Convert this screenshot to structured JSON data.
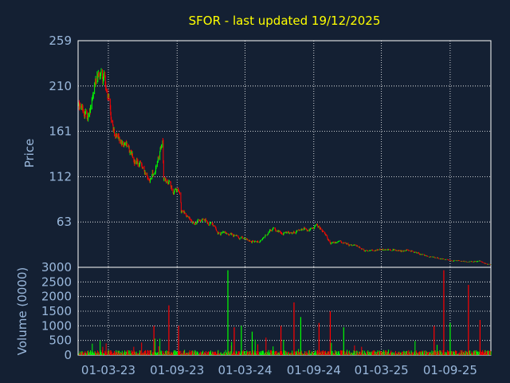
{
  "chart_data": [
    {
      "type": "candlestick",
      "title": "SFOR - last updated 19/12/2025",
      "ylabel": "Price",
      "ylim": [
        14,
        259
      ],
      "y_ticks": [
        "259",
        "210",
        "161",
        "112",
        "63"
      ],
      "y_tick_values": [
        259,
        210,
        161,
        112,
        63
      ],
      "grid": true,
      "colors": {
        "up": "#00ff00",
        "down": "#ff0000",
        "title": "#ffff00",
        "text": "#9ab8dc",
        "grid": "#ffffff"
      },
      "x_range": [
        "2022-12-10",
        "2025-12-19"
      ],
      "trend_anchors": [
        {
          "date": "2022-12-10",
          "value": 192
        },
        {
          "date": "2022-12-28",
          "value": 180
        },
        {
          "date": "2023-01-15",
          "value": 182
        },
        {
          "date": "2023-01-22",
          "value": 215
        },
        {
          "date": "2023-02-02",
          "value": 230
        },
        {
          "date": "2023-02-15",
          "value": 220
        },
        {
          "date": "2023-03-01",
          "value": 200
        },
        {
          "date": "2023-03-12",
          "value": 165
        },
        {
          "date": "2023-04-10",
          "value": 148
        },
        {
          "date": "2023-05-15",
          "value": 130
        },
        {
          "date": "2023-06-20",
          "value": 110
        },
        {
          "date": "2023-07-10",
          "value": 125
        },
        {
          "date": "2023-07-25",
          "value": 150
        },
        {
          "date": "2023-07-27",
          "value": 110
        },
        {
          "date": "2023-08-25",
          "value": 95
        },
        {
          "date": "2023-09-10",
          "value": 95
        },
        {
          "date": "2023-09-12",
          "value": 75
        },
        {
          "date": "2023-10-15",
          "value": 62
        },
        {
          "date": "2023-11-15",
          "value": 65
        },
        {
          "date": "2023-12-20",
          "value": 52
        },
        {
          "date": "2024-01-20",
          "value": 50
        },
        {
          "date": "2024-03-15",
          "value": 42
        },
        {
          "date": "2024-04-15",
          "value": 43
        },
        {
          "date": "2024-05-15",
          "value": 56
        },
        {
          "date": "2024-06-15",
          "value": 52
        },
        {
          "date": "2024-07-20",
          "value": 53
        },
        {
          "date": "2024-08-20",
          "value": 55
        },
        {
          "date": "2024-09-10",
          "value": 62
        },
        {
          "date": "2024-10-15",
          "value": 42
        },
        {
          "date": "2024-12-15",
          "value": 38
        },
        {
          "date": "2025-01-15",
          "value": 33
        },
        {
          "date": "2025-03-15",
          "value": 34
        },
        {
          "date": "2025-05-15",
          "value": 32
        },
        {
          "date": "2025-07-15",
          "value": 25
        },
        {
          "date": "2025-09-15",
          "value": 21
        },
        {
          "date": "2025-11-20",
          "value": 20
        },
        {
          "date": "2025-12-19",
          "value": 17
        }
      ]
    },
    {
      "type": "bar",
      "ylabel": "Volume (0000)",
      "ylim": [
        0,
        3000
      ],
      "y_ticks": [
        "3000",
        "2500",
        "2000",
        "1500",
        "1000",
        "500",
        "0"
      ],
      "y_tick_values": [
        3000,
        2500,
        2000,
        1500,
        1000,
        500,
        0
      ],
      "x_ticks": [
        "01-03-23",
        "01-09-23",
        "01-03-24",
        "01-09-24",
        "01-03-25",
        "01-09-25"
      ],
      "x_tick_dates": [
        "2023-03-01",
        "2023-09-01",
        "2024-03-01",
        "2024-09-01",
        "2025-03-01",
        "2025-09-01"
      ],
      "base_volume": 100,
      "spikes": [
        {
          "date": "2023-07-01",
          "value": 1000,
          "up": false
        },
        {
          "date": "2023-08-10",
          "value": 1700,
          "up": false
        },
        {
          "date": "2023-09-05",
          "value": 1000,
          "up": false
        },
        {
          "date": "2024-01-15",
          "value": 2900,
          "up": true
        },
        {
          "date": "2024-02-01",
          "value": 950,
          "up": false
        },
        {
          "date": "2024-02-20",
          "value": 1000,
          "up": true
        },
        {
          "date": "2024-03-20",
          "value": 800,
          "up": true
        },
        {
          "date": "2024-06-05",
          "value": 1000,
          "up": false
        },
        {
          "date": "2024-07-10",
          "value": 1800,
          "up": false
        },
        {
          "date": "2024-07-28",
          "value": 1300,
          "up": true
        },
        {
          "date": "2024-09-15",
          "value": 1100,
          "up": false
        },
        {
          "date": "2024-10-15",
          "value": 1500,
          "up": false
        },
        {
          "date": "2024-11-20",
          "value": 950,
          "up": true
        },
        {
          "date": "2025-07-20",
          "value": 1000,
          "up": false
        },
        {
          "date": "2025-08-15",
          "value": 2900,
          "up": false
        },
        {
          "date": "2025-09-01",
          "value": 1100,
          "up": true
        },
        {
          "date": "2025-10-20",
          "value": 2400,
          "up": false
        },
        {
          "date": "2025-11-20",
          "value": 1200,
          "up": false
        }
      ]
    }
  ]
}
